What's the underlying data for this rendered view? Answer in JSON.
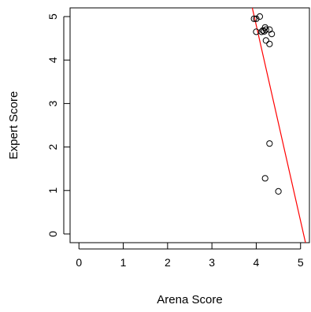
{
  "chart_data": {
    "type": "scatter",
    "xlabel": "Arena Score",
    "ylabel": "Expert Score",
    "xlim": [
      -0.2,
      5.2
    ],
    "ylim": [
      -0.2,
      5.2
    ],
    "x_ticks": [
      "0",
      "1",
      "2",
      "3",
      "4",
      "5"
    ],
    "y_ticks": [
      "0",
      "1",
      "2",
      "3",
      "4",
      "5"
    ],
    "grid": false,
    "series": [
      {
        "points": [
          [
            3.95,
            4.95
          ],
          [
            4.0,
            4.95
          ],
          [
            4.08,
            5.0
          ],
          [
            4.0,
            4.65
          ],
          [
            4.12,
            4.65
          ],
          [
            4.15,
            4.68
          ],
          [
            4.18,
            4.66
          ],
          [
            4.2,
            4.75
          ],
          [
            4.22,
            4.7
          ],
          [
            4.3,
            4.7
          ],
          [
            4.35,
            4.6
          ],
          [
            4.22,
            4.45
          ],
          [
            4.3,
            4.37
          ],
          [
            4.3,
            2.08
          ],
          [
            4.2,
            1.28
          ],
          [
            4.5,
            0.98
          ]
        ],
        "color": "#000000"
      }
    ],
    "fit_line": {
      "slope": -4.5,
      "intercept": 22.8,
      "color": "#ff0000"
    }
  }
}
